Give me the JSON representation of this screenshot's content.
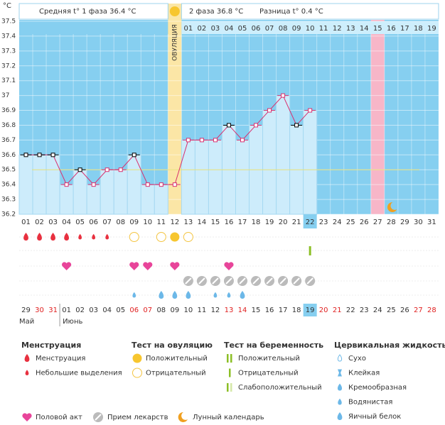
{
  "header": {
    "unit": "°C",
    "phase1": "Средняя t° 1 фаза 36.4 °C",
    "phase2": "2 фаза 36.8 °C",
    "difference": "Разница t° 0.4 °C",
    "ovulation": "ОВУЛЯЦИЯ"
  },
  "chart_data": {
    "type": "bbt",
    "categories": [
      "01",
      "02",
      "03",
      "04",
      "05",
      "06",
      "07",
      "08",
      "09",
      "10",
      "11",
      "12",
      "13",
      "14",
      "15",
      "16",
      "17",
      "18",
      "19",
      "20",
      "21",
      "22",
      "23",
      "24",
      "25",
      "26",
      "27",
      "28",
      "29",
      "30",
      "31"
    ],
    "values": [
      36.6,
      36.6,
      36.6,
      36.4,
      36.5,
      36.4,
      36.5,
      36.5,
      36.6,
      36.4,
      36.4,
      36.4,
      36.7,
      36.7,
      36.7,
      36.8,
      36.7,
      36.8,
      36.9,
      37.0,
      36.8,
      36.9,
      null,
      null,
      null,
      null,
      null,
      null,
      null,
      null,
      null
    ],
    "post_ovulation_days": [
      "01",
      "02",
      "03",
      "04",
      "05",
      "06",
      "07",
      "08",
      "09",
      "10",
      "11",
      "12",
      "13",
      "14",
      "15",
      "16",
      "17",
      "18",
      "19"
    ],
    "ylim": [
      36.2,
      37.5
    ],
    "yticks": [
      36.2,
      36.3,
      36.4,
      36.5,
      36.6,
      36.7,
      36.8,
      36.9,
      37,
      37.1,
      37.2,
      37.3,
      37.4,
      37.5
    ],
    "coverline": 36.5,
    "dates": [
      "29",
      "30",
      "31",
      "01",
      "02",
      "03",
      "04",
      "05",
      "06",
      "07",
      "08",
      "09",
      "10",
      "11",
      "12",
      "13",
      "14",
      "15",
      "16",
      "17",
      "18",
      "19",
      "20",
      "21",
      "22",
      "23",
      "24",
      "25",
      "26",
      "27",
      "28"
    ],
    "months": [
      "Май",
      "Июнь"
    ]
  },
  "legend": {
    "menstruation": {
      "title": "Менструация",
      "items": [
        "Менструация",
        "Небольшие выделения"
      ]
    },
    "ovulation_test": {
      "title": "Тест на овуляцию",
      "items": [
        "Положительный",
        "Отрицательный"
      ]
    },
    "pregnancy_test": {
      "title": "Тест на беременность",
      "items": [
        "Положительный",
        "Отрицательный",
        "Слабоположительный"
      ]
    },
    "cervical": {
      "title": "Цервикальная жидкость",
      "items": [
        "Сухо",
        "Клейкая",
        "Кремообразная",
        "Водянистая",
        "Яичный белок"
      ]
    },
    "other": [
      "Половой акт",
      "Прием лекарств",
      "Лунный календарь"
    ]
  }
}
